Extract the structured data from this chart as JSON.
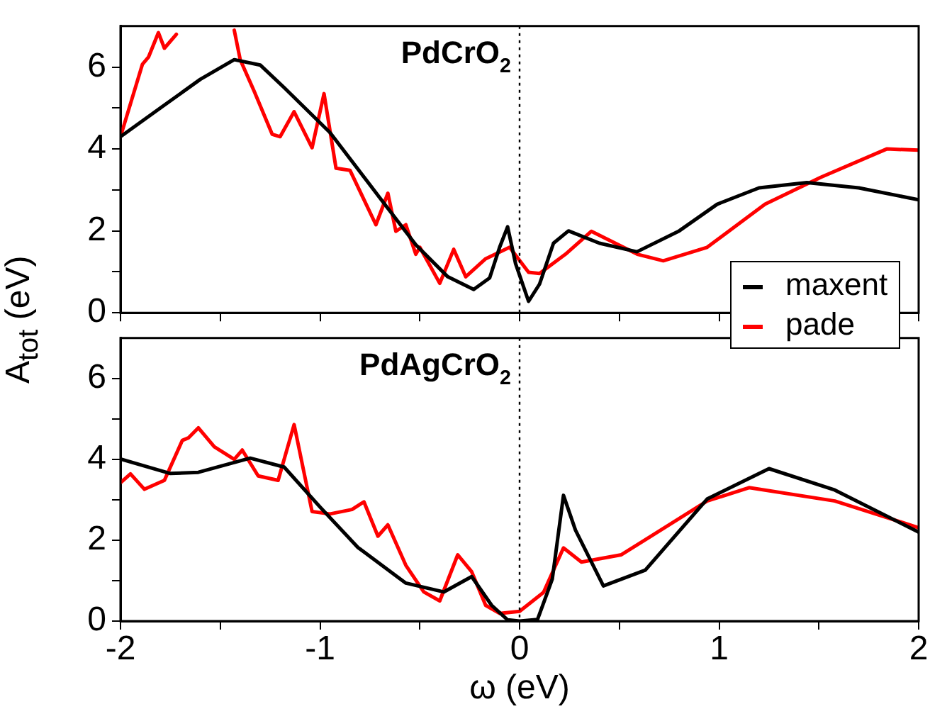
{
  "chart_data": [
    {
      "type": "line",
      "ylabel": "A$_{tot}$ (eV)",
      "annotations": [
        "PdCrO$_{2}$"
      ],
      "xlim": [
        -2,
        2
      ],
      "ylim": [
        0,
        7
      ],
      "xticks": [
        -2,
        {
          "value": -1.5,
          "label": null
        },
        -1,
        {
          "value": -0.5,
          "label": null
        },
        0,
        {
          "value": 0.5,
          "label": null
        },
        1,
        {
          "value": 1.5,
          "label": null
        },
        2
      ],
      "yticks": [
        0,
        {
          "value": 1,
          "label": null
        },
        2,
        {
          "value": 3,
          "label": null
        },
        4,
        {
          "value": 5,
          "label": null
        },
        6
      ],
      "tick_labels": "y",
      "grid": false,
      "legend": "bottom right",
      "marker": "none",
      "line_style": "solid",
      "ref_lines": [
        {
          "axis": "x",
          "value": 0,
          "line_style": "dotted",
          "color": "#000000"
        }
      ],
      "series": [
        {
          "name": "maxent",
          "color": "#000000",
          "x": [
            -2,
            -1.8,
            -1.6,
            -1.43,
            -1.3,
            -1.18,
            -0.95,
            -0.71,
            -0.52,
            -0.36,
            -0.23,
            -0.15,
            -0.1,
            -0.06,
            -0.02,
            0.045,
            0.1,
            0.17,
            0.245,
            0.4,
            0.588,
            0.8,
            0.99,
            1.2,
            1.44,
            1.7,
            2
          ],
          "values": [
            4.3,
            5.0,
            5.7,
            6.18,
            6.05,
            5.5,
            4.4,
            2.87,
            1.66,
            0.88,
            0.57,
            0.85,
            1.6,
            2.1,
            1.2,
            0.28,
            0.7,
            1.7,
            2.0,
            1.7,
            1.49,
            2.0,
            2.65,
            3.05,
            3.18,
            3.05,
            2.76
          ]
        },
        {
          "name": "pade",
          "color": "#ff0000",
          "x": [
            -2,
            -1.89,
            -1.86,
            -1.81,
            -1.78,
            -1.72,
            -1.55,
            -1.43,
            -1.4,
            -1.33,
            -1.24,
            -1.2,
            -1.13,
            -1.04,
            -0.98,
            -0.92,
            -0.85,
            -0.72,
            -0.66,
            -0.62,
            -0.57,
            -0.52,
            -0.5,
            -0.4,
            -0.33,
            -0.27,
            -0.17,
            -0.05,
            0.045,
            0.1,
            0.23,
            0.36,
            0.59,
            0.72,
            0.94,
            1.23,
            1.51,
            1.84,
            2
          ],
          "values": [
            4.3,
            6.07,
            6.24,
            6.84,
            6.46,
            6.8,
            null,
            6.9,
            6.18,
            5.41,
            4.36,
            4.3,
            4.91,
            4.03,
            5.35,
            3.53,
            3.48,
            2.15,
            2.92,
            1.99,
            2.15,
            1.43,
            1.6,
            0.72,
            1.55,
            0.88,
            1.32,
            1.6,
            0.99,
            0.96,
            1.43,
            1.99,
            1.43,
            1.27,
            1.6,
            2.65,
            3.31,
            4.0,
            3.97
          ]
        }
      ]
    },
    {
      "type": "line",
      "xlabel": "ω (eV)",
      "annotations": [
        "PdAgCrO$_{2}$"
      ],
      "xlim": [
        -2,
        2
      ],
      "ylim": [
        0,
        7
      ],
      "xticks": [
        -2,
        {
          "value": -1.5,
          "label": null
        },
        -1,
        {
          "value": -0.5,
          "label": null
        },
        0,
        {
          "value": 0.5,
          "label": null
        },
        1,
        {
          "value": 1.5,
          "label": null
        },
        2
      ],
      "yticks": [
        0,
        {
          "value": 1,
          "label": null
        },
        2,
        {
          "value": 3,
          "label": null
        },
        4,
        {
          "value": 5,
          "label": null
        },
        6
      ],
      "grid": false,
      "marker": "none",
      "line_style": "solid",
      "ref_lines": [
        {
          "axis": "x",
          "value": 0,
          "line_style": "dotted",
          "color": "#000000"
        }
      ],
      "series": [
        {
          "color": "#000000",
          "x": [
            -2,
            -1.75,
            -1.61,
            -1.35,
            -1.18,
            -1.0,
            -0.81,
            -0.57,
            -0.38,
            -0.24,
            -0.14,
            -0.06,
            0,
            0.09,
            0.164,
            0.22,
            0.28,
            0.42,
            0.63,
            0.94,
            1.25,
            1.58,
            2
          ],
          "values": [
            4.01,
            3.65,
            3.68,
            4.03,
            3.81,
            2.82,
            1.82,
            0.94,
            0.72,
            1.1,
            0.39,
            0.03,
            0,
            0.04,
            1.04,
            3.11,
            2.25,
            0.87,
            1.26,
            3.02,
            3.77,
            3.24,
            2.2
          ]
        },
        {
          "color": "#ff0000",
          "x": [
            -2,
            -1.95,
            -1.88,
            -1.78,
            -1.69,
            -1.66,
            -1.61,
            -1.53,
            -1.43,
            -1.39,
            -1.31,
            -1.21,
            -1.13,
            -1.04,
            -0.95,
            -0.84,
            -0.78,
            -0.71,
            -0.66,
            -0.57,
            -0.48,
            -0.4,
            -0.31,
            -0.24,
            -0.17,
            -0.1,
            0,
            0.12,
            0.22,
            0.31,
            0.51,
            0.94,
            1.15,
            1.58,
            2
          ],
          "values": [
            3.42,
            3.64,
            3.26,
            3.48,
            4.47,
            4.53,
            4.78,
            4.31,
            4.0,
            4.23,
            3.59,
            3.48,
            4.86,
            2.71,
            2.65,
            2.76,
            2.95,
            2.1,
            2.38,
            1.38,
            0.72,
            0.5,
            1.64,
            1.22,
            0.39,
            0.19,
            0.24,
            0.71,
            1.81,
            1.46,
            1.64,
            2.97,
            3.3,
            2.97,
            2.31
          ]
        }
      ]
    }
  ]
}
